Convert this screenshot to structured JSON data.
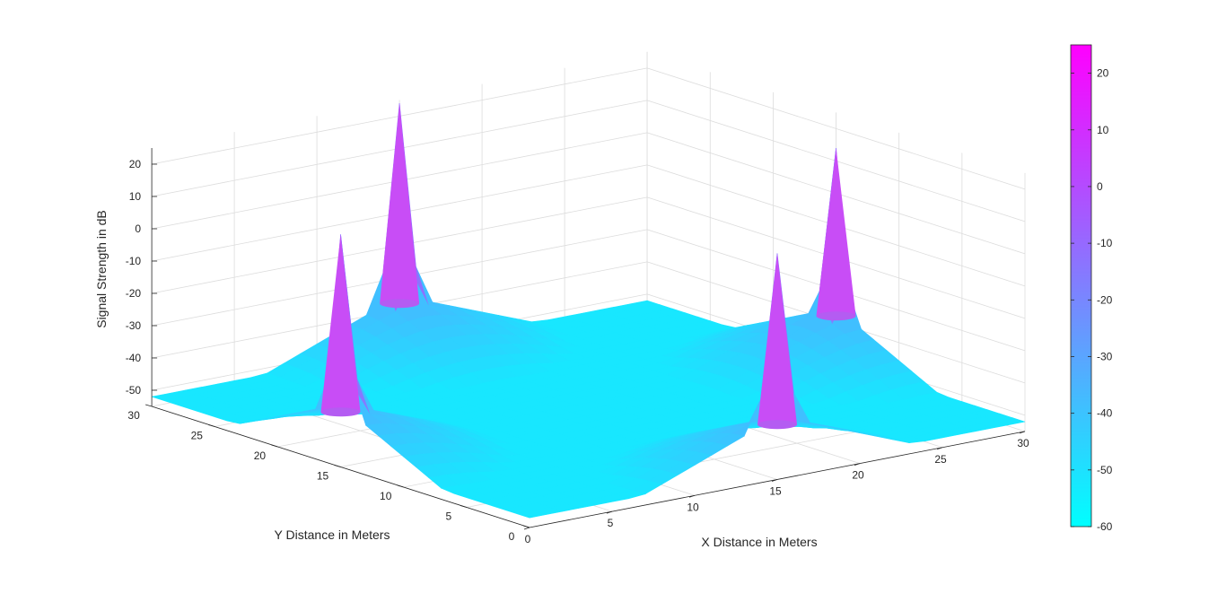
{
  "chart_data": {
    "type": "surface",
    "xlabel": "X Distance in Meters",
    "ylabel": "Y Distance in Meters",
    "zlabel": "Signal Strength in dB",
    "xlim": [
      0,
      30
    ],
    "ylim": [
      0,
      30
    ],
    "zlim": [
      -55,
      25
    ],
    "x_ticks": [
      "0",
      "5",
      "10",
      "15",
      "20",
      "25",
      "30"
    ],
    "y_ticks": [
      "0",
      "5",
      "10",
      "15",
      "20",
      "25",
      "30"
    ],
    "z_ticks": [
      "-50",
      "-40",
      "-30",
      "-20",
      "-10",
      "0",
      "10",
      "20"
    ],
    "grid": true,
    "colormap": "cool",
    "color_min": "#00ffff",
    "color_max": "#ff00ff",
    "peaks": [
      {
        "x": 15,
        "y": 30,
        "z": 24
      },
      {
        "x": 15,
        "y": 0,
        "z": 15
      },
      {
        "x": 0,
        "y": 15,
        "z": 17
      },
      {
        "x": 30,
        "y": 15,
        "z": 14
      }
    ],
    "floor_value": -55,
    "colorbar": {
      "ticks": [
        "20",
        "10",
        "0",
        "-10",
        "-20",
        "-30",
        "-40",
        "-50",
        "-60"
      ],
      "range": [
        -60,
        25
      ]
    }
  }
}
